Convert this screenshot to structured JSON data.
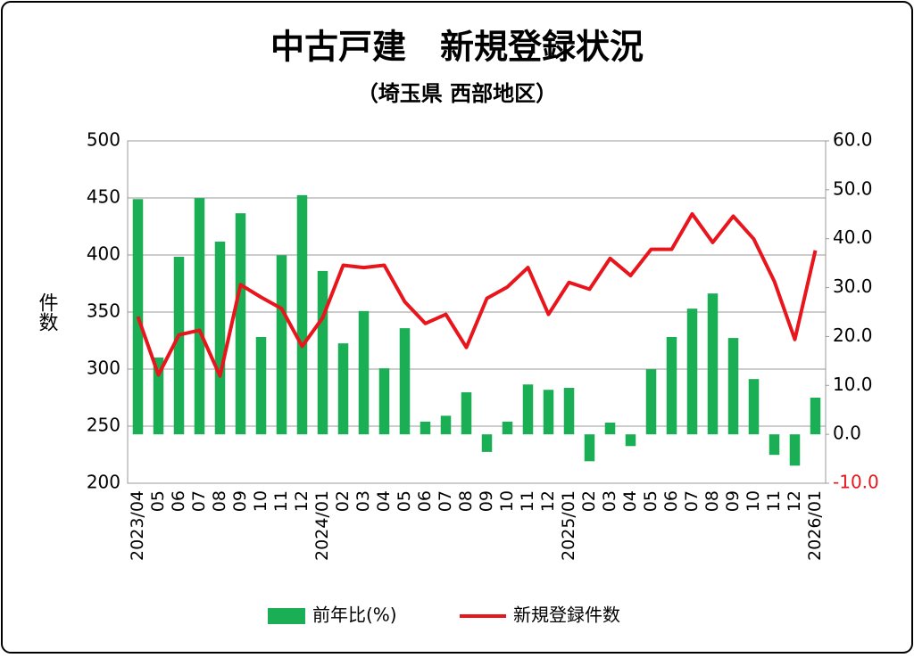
{
  "chart_data": {
    "type": "bar_line",
    "title": "中古戸建　新規登録状況",
    "subtitle": "（埼玉県 西部地区）",
    "y_axis_label": "件数",
    "categories": [
      "2023/04",
      "05",
      "06",
      "07",
      "08",
      "09",
      "10",
      "11",
      "12",
      "2024/01",
      "02",
      "03",
      "04",
      "05",
      "06",
      "07",
      "08",
      "09",
      "10",
      "11",
      "12",
      "2025/01",
      "02",
      "03",
      "04",
      "05",
      "06",
      "07",
      "08",
      "09",
      "10",
      "11",
      "12",
      "2026/01"
    ],
    "series": [
      {
        "name": "前年比(%)",
        "type": "bar",
        "axis": "y2",
        "color": "#1aaf54",
        "values": [
          48.1,
          15.7,
          36.3,
          48.3,
          39.4,
          45.2,
          19.9,
          36.6,
          48.9,
          33.4,
          18.6,
          25.2,
          13.5,
          21.7,
          2.6,
          3.8,
          8.6,
          -3.6,
          2.6,
          10.2,
          9.1,
          9.5,
          -5.5,
          2.4,
          -2.4,
          13.3,
          19.9,
          25.7,
          28.8,
          19.7,
          11.3,
          -4.2,
          -6.4,
          7.5
        ]
      },
      {
        "name": "新規登録件数",
        "type": "line",
        "axis": "y",
        "color": "#e8161c",
        "values": [
          346,
          295,
          330,
          334,
          294,
          374,
          363,
          353,
          320,
          345,
          391,
          389,
          391,
          359,
          340,
          348,
          319,
          362,
          372,
          389,
          348,
          376,
          370,
          397,
          382,
          405,
          405,
          436,
          411,
          434,
          414,
          377,
          326,
          404
        ]
      }
    ],
    "ylim": [
      200,
      500
    ],
    "yticks": [
      200,
      250,
      300,
      350,
      400,
      450,
      500
    ],
    "y2lim": [
      -10,
      60
    ],
    "y2ticks": [
      {
        "value": -10,
        "label": "-10.0"
      },
      {
        "value": 0,
        "label": "0.0"
      },
      {
        "value": 10,
        "label": "10.0"
      },
      {
        "value": 20,
        "label": "20.0"
      },
      {
        "value": 30,
        "label": "30.0"
      },
      {
        "value": 40,
        "label": "40.0"
      },
      {
        "value": 50,
        "label": "50.0"
      },
      {
        "value": 60,
        "label": "60.0"
      }
    ],
    "grid": true,
    "legend": "bottom"
  }
}
